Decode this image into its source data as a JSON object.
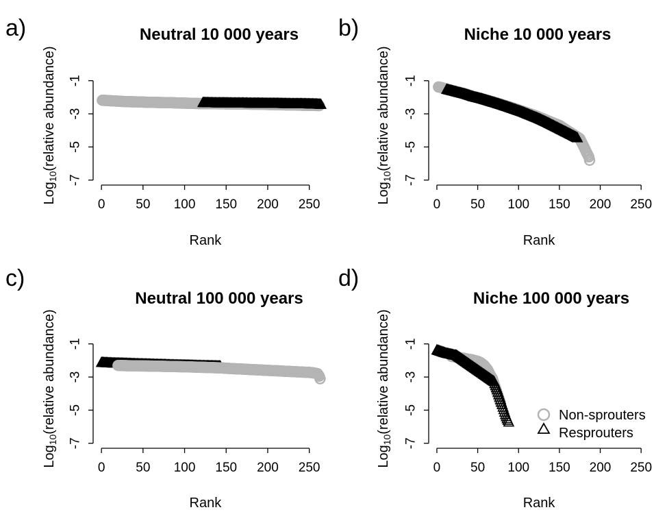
{
  "legend": {
    "entries": [
      {
        "label": "Non-sprouters",
        "marker": "circle",
        "color": "#b4b4b4"
      },
      {
        "label": "Resprouters",
        "marker": "triangle",
        "color": "#000000"
      }
    ]
  },
  "chart_data": [
    {
      "type": "scatter",
      "panel": "a)",
      "title": "Neutral 10 000 years",
      "xlabel": "Rank",
      "ylabel_base": "Log",
      "ylabel_sub": "10",
      "ylabel_rest": "(relative abundance)",
      "xlim": [
        -10,
        275
      ],
      "ylim": [
        -7.3,
        -0.1
      ],
      "xticks": [
        0,
        50,
        100,
        150,
        200,
        250
      ],
      "yticks": [
        -1,
        -3,
        -5,
        -7
      ],
      "series": [
        {
          "name": "Non-sprouters",
          "marker": "circle",
          "color": "#b4b4b4",
          "x": [
            1,
            8,
            15,
            25,
            35,
            45,
            55,
            65,
            75,
            85,
            95,
            105,
            112,
            118,
            160,
            185,
            262
          ],
          "y": [
            -2.18,
            -2.2,
            -2.22,
            -2.25,
            -2.27,
            -2.28,
            -2.3,
            -2.31,
            -2.32,
            -2.33,
            -2.35,
            -2.36,
            -2.37,
            -2.38,
            -2.4,
            -2.42,
            -2.5
          ]
        },
        {
          "name": "Resprouters",
          "marker": "triangle",
          "color": "#000000",
          "x": [
            122,
            130,
            140,
            150,
            160,
            170,
            180,
            190,
            200,
            210,
            220,
            230,
            240,
            250,
            258,
            264
          ],
          "y": [
            -2.35,
            -2.36,
            -2.37,
            -2.37,
            -2.38,
            -2.38,
            -2.39,
            -2.39,
            -2.4,
            -2.4,
            -2.41,
            -2.42,
            -2.42,
            -2.43,
            -2.44,
            -2.46
          ]
        }
      ]
    },
    {
      "type": "scatter",
      "panel": "b)",
      "title": "Niche 10 000 years",
      "xlabel": "Rank",
      "ylabel_base": "Log",
      "ylabel_sub": "10",
      "ylabel_rest": "(relative abundance)",
      "xlim": [
        -10,
        275
      ],
      "ylim": [
        -7.3,
        -0.1
      ],
      "xticks": [
        0,
        50,
        100,
        150,
        200,
        250
      ],
      "yticks": [
        -1,
        -3,
        -5,
        -7
      ],
      "series": [
        {
          "name": "Non-sprouters",
          "marker": "circle",
          "color": "#b4b4b4",
          "x": [
            2,
            6,
            10,
            15,
            22,
            30,
            40,
            55,
            70,
            90,
            120,
            150,
            175,
            178,
            180,
            182,
            184,
            186,
            187
          ],
          "y": [
            -1.38,
            -1.42,
            -1.48,
            -1.55,
            -1.65,
            -1.75,
            -1.9,
            -2.1,
            -2.3,
            -2.6,
            -3.1,
            -3.7,
            -4.5,
            -4.8,
            -5.0,
            -5.2,
            -5.4,
            -5.6,
            -5.8
          ]
        },
        {
          "name": "Resprouters",
          "marker": "triangle",
          "color": "#000000",
          "x": [
            12,
            20,
            28,
            36,
            45,
            55,
            65,
            75,
            85,
            95,
            105,
            115,
            125,
            135,
            145,
            155,
            165,
            172
          ],
          "y": [
            -1.55,
            -1.65,
            -1.75,
            -1.85,
            -2.0,
            -2.12,
            -2.27,
            -2.42,
            -2.58,
            -2.75,
            -2.92,
            -3.12,
            -3.32,
            -3.55,
            -3.8,
            -4.05,
            -4.3,
            -4.48
          ]
        }
      ]
    },
    {
      "type": "scatter",
      "panel": "c)",
      "title": "Neutral 100 000 years",
      "xlabel": "Rank",
      "ylabel_base": "Log",
      "ylabel_sub": "10",
      "ylabel_rest": "(relative abundance)",
      "xlim": [
        -10,
        275
      ],
      "ylim": [
        -7.3,
        -0.1
      ],
      "xticks": [
        0,
        50,
        100,
        150,
        200,
        250
      ],
      "yticks": [
        -1,
        -3,
        -5,
        -7
      ],
      "series": [
        {
          "name": "Resprouters",
          "marker": "triangle",
          "color": "#000000",
          "x": [
            0,
            8,
            16,
            25,
            35,
            45,
            55,
            65,
            75,
            85,
            95,
            105,
            115,
            125,
            135,
            143
          ],
          "y": [
            -2.15,
            -2.17,
            -2.19,
            -2.2,
            -2.22,
            -2.24,
            -2.25,
            -2.27,
            -2.28,
            -2.3,
            -2.31,
            -2.32,
            -2.34,
            -2.35,
            -2.36,
            -2.37
          ]
        },
        {
          "name": "Non-sprouters",
          "marker": "circle",
          "color": "#b4b4b4",
          "x": [
            20,
            35,
            48,
            62,
            80,
            100,
            145,
            150,
            160,
            170,
            180,
            190,
            200,
            210,
            220,
            230,
            240,
            250,
            255,
            260,
            262,
            263
          ],
          "y": [
            -2.3,
            -2.32,
            -2.33,
            -2.34,
            -2.36,
            -2.38,
            -2.45,
            -2.47,
            -2.5,
            -2.52,
            -2.55,
            -2.57,
            -2.6,
            -2.62,
            -2.65,
            -2.67,
            -2.7,
            -2.72,
            -2.75,
            -2.8,
            -2.95,
            -3.1
          ]
        }
      ]
    },
    {
      "type": "scatter",
      "panel": "d)",
      "title": "Niche 100 000 years",
      "xlabel": "Rank",
      "ylabel_base": "Log",
      "ylabel_sub": "10",
      "ylabel_rest": "(relative abundance)",
      "xlim": [
        -10,
        275
      ],
      "ylim": [
        -7.3,
        -0.1
      ],
      "xticks": [
        0,
        50,
        100,
        150,
        200,
        250
      ],
      "yticks": [
        -1,
        -3,
        -5,
        -7
      ],
      "series": [
        {
          "name": "Non-sprouters",
          "marker": "circle",
          "color": "#b4b4b4",
          "x": [
            18,
            22,
            26,
            30,
            34,
            38,
            42,
            46,
            50,
            54,
            58,
            62,
            65,
            68,
            70,
            72,
            74,
            76,
            78
          ],
          "y": [
            -1.75,
            -1.78,
            -1.82,
            -1.85,
            -1.88,
            -1.92,
            -1.95,
            -2.0,
            -2.05,
            -2.15,
            -2.3,
            -2.55,
            -2.85,
            -3.1,
            -3.4,
            -3.7,
            -4.0,
            -4.3,
            -4.6
          ]
        },
        {
          "name": "Resprouters",
          "marker": "triangle",
          "color": "#000000",
          "x": [
            0,
            3,
            6,
            9,
            12,
            15,
            18,
            21,
            24,
            70,
            72,
            74,
            76,
            78,
            80,
            82,
            84,
            86,
            88
          ],
          "y": [
            -1.4,
            -1.45,
            -1.5,
            -1.55,
            -1.6,
            -1.63,
            -1.66,
            -1.7,
            -1.72,
            -3.3,
            -3.55,
            -3.8,
            -4.1,
            -4.4,
            -4.7,
            -5.0,
            -5.3,
            -5.55,
            -5.75
          ]
        }
      ]
    }
  ]
}
